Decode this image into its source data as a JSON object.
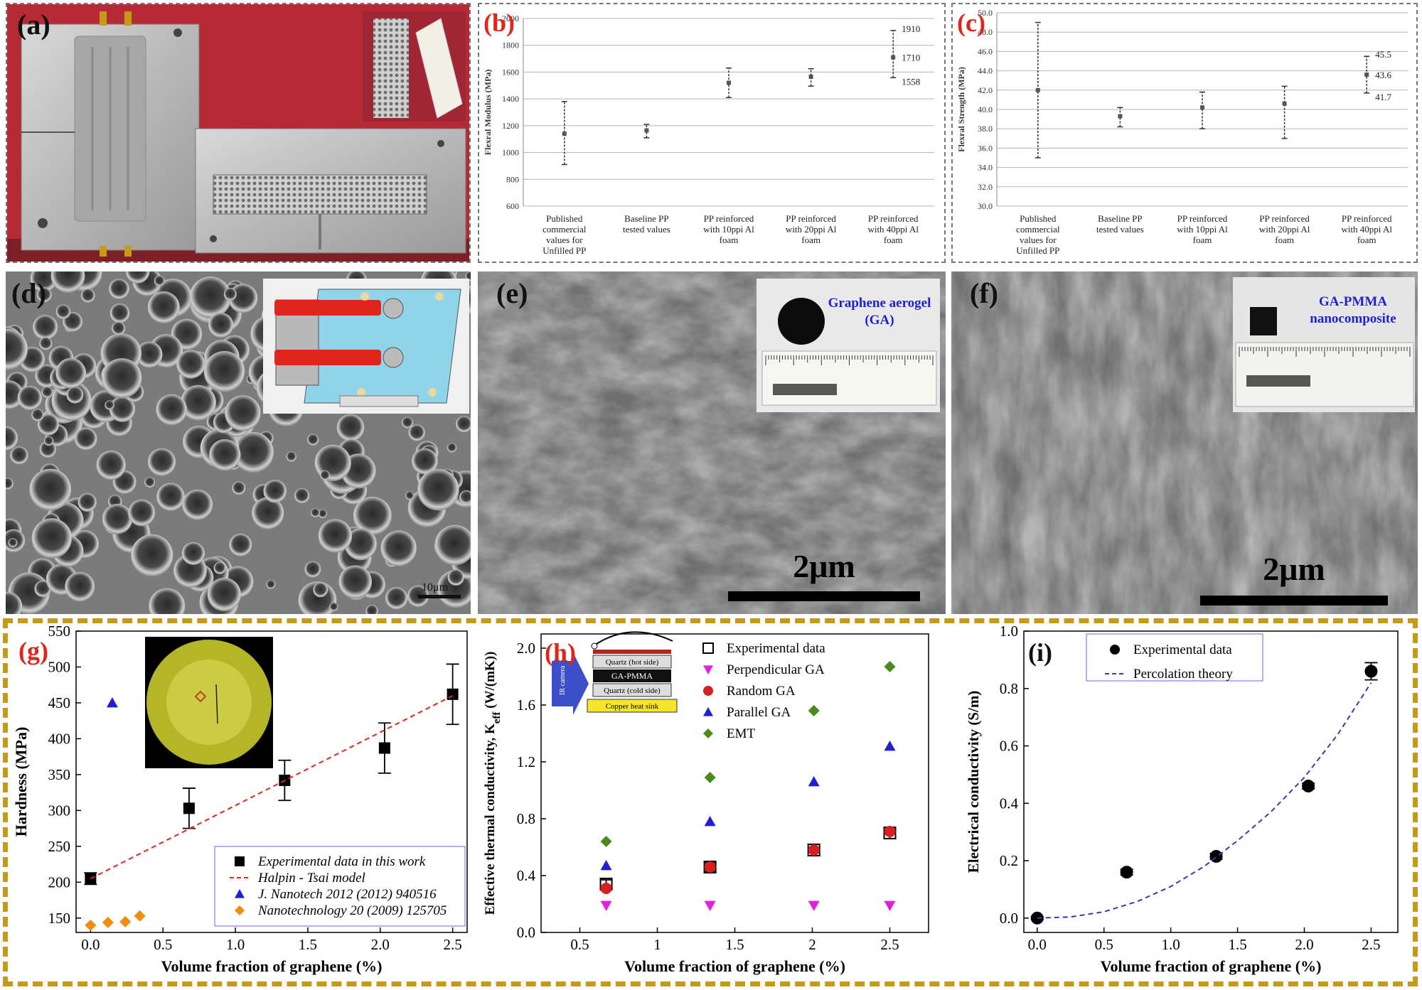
{
  "panels": {
    "a": {
      "letter": "(a)"
    },
    "b": {
      "letter": "(b)"
    },
    "c": {
      "letter": "(c)"
    },
    "d": {
      "letter": "(d)",
      "scale": "10μm"
    },
    "e": {
      "letter": "(e)",
      "scale": "2μm",
      "inset_label": "Graphene aerogel (GA)",
      "inset_label_1": "Graphene aerogel",
      "inset_label_2": "(GA)"
    },
    "f": {
      "letter": "(f)",
      "scale": "2μm",
      "inset_label_1": "GA-PMMA",
      "inset_label_2": "nanocomposite"
    },
    "g": {
      "letter": "(g)"
    },
    "h": {
      "letter": "(h)",
      "inset": {
        "label_top": "Quartz (hot side)",
        "label_mid": "GA-PMMA",
        "label_low": "Quartz (cold side)",
        "label_bottom": "Copper heat sink",
        "camera": "IR camera"
      }
    },
    "i": {
      "letter": "(i)"
    }
  },
  "chart_data": [
    {
      "id": "b",
      "type": "scatter",
      "ylabel": "Flexral Modulus (MPa)",
      "ylim": [
        600,
        2000
      ],
      "yticks": [
        600,
        800,
        1000,
        1200,
        1400,
        1600,
        1800,
        2000
      ],
      "categories": [
        "Published commercial values for Unfilled PP",
        "Baseline PP tested values",
        "PP reinforced with 10ppi Al foam",
        "PP reinforced with 20ppi Al foam",
        "PP reinforced with 40ppi Al foam"
      ],
      "category_lines": [
        [
          "Published",
          "commercial",
          "values for",
          "Unfilled PP"
        ],
        [
          "Baseline PP",
          "tested values"
        ],
        [
          "PP reinforced",
          "with 10ppi Al",
          "foam"
        ],
        [
          "PP reinforced",
          "with 20ppi Al",
          "foam"
        ],
        [
          "PP reinforced",
          "with 40ppi Al",
          "foam"
        ]
      ],
      "values": [
        1140,
        1165,
        1520,
        1565,
        1710
      ],
      "err_low": [
        910,
        1110,
        1410,
        1495,
        1558
      ],
      "err_high": [
        1380,
        1210,
        1630,
        1625,
        1910
      ],
      "annotations": [
        "1910",
        "1710",
        "1558"
      ],
      "grid": true
    },
    {
      "id": "c",
      "type": "scatter",
      "ylabel": "Flexral Strength (MPa)",
      "ylim": [
        30,
        50
      ],
      "yticks": [
        30.0,
        32.0,
        34.0,
        36.0,
        38.0,
        40.0,
        42.0,
        44.0,
        46.0,
        48.0,
        50.0
      ],
      "ytick_labels": [
        "30.0",
        "32.0",
        "34.0",
        "36.0",
        "38.0",
        "40.0",
        "42.0",
        "44.0",
        "46.0",
        "48.0",
        "50.0"
      ],
      "categories": [
        "Published commercial values for Unfilled PP",
        "Baseline PP tested values",
        "PP reinforced with 10ppi Al foam",
        "PP reinforced with 20ppi Al foam",
        "PP reinforced with 40ppi Al foam"
      ],
      "category_lines": [
        [
          "Published",
          "commercial",
          "values for",
          "Unfilled PP"
        ],
        [
          "Baseline PP",
          "tested values"
        ],
        [
          "PP reinforced",
          "with 10ppi Al",
          "foam"
        ],
        [
          "PP reinforced",
          "with 20ppi Al",
          "foam"
        ],
        [
          "PP reinforced",
          "with 40ppi Al",
          "foam"
        ]
      ],
      "values": [
        42.0,
        39.3,
        40.2,
        40.6,
        43.6
      ],
      "err_low": [
        35.0,
        38.2,
        38.0,
        37.0,
        41.7
      ],
      "err_high": [
        49.0,
        40.2,
        41.8,
        42.4,
        45.5
      ],
      "annotations": [
        "45.5",
        "43.6",
        "41.7"
      ],
      "grid": true
    },
    {
      "id": "g",
      "type": "scatter",
      "xlabel": "Volume fraction of graphene (%)",
      "ylabel": "Hardness (MPa)",
      "xlim": [
        -0.1,
        2.6
      ],
      "ylim": [
        130,
        550
      ],
      "xticks": [
        0.0,
        0.5,
        1.0,
        1.5,
        2.0,
        2.5
      ],
      "xtick_labels": [
        "0.0",
        "0.5",
        "1.0",
        "1.5",
        "2.0",
        "2.5"
      ],
      "yticks": [
        150,
        200,
        250,
        300,
        350,
        400,
        450,
        500,
        550
      ],
      "legend": "bottom-right",
      "series": [
        {
          "name": "Experimental data in this work",
          "marker": "square",
          "color": "#000000",
          "x": [
            0.0,
            0.68,
            1.34,
            2.03,
            2.5
          ],
          "y": [
            205,
            303,
            342,
            387,
            462
          ],
          "err": [
            8,
            28,
            28,
            35,
            42
          ]
        },
        {
          "name": "Halpin - Tsai model",
          "marker": "dashed-line",
          "color": "#e0261c",
          "x": [
            0.0,
            2.5
          ],
          "y": [
            205,
            460
          ]
        },
        {
          "name": "J. Nanotech 2012 (2012) 940516",
          "marker": "triangle",
          "color": "#1f1fd6",
          "x": [
            0.15
          ],
          "y": [
            450
          ]
        },
        {
          "name": "Nanotechnology 20 (2009) 125705",
          "marker": "diamond",
          "color": "#f28c0f",
          "x": [
            0.0,
            0.12,
            0.24,
            0.34
          ],
          "y": [
            140,
            144,
            145,
            153
          ]
        }
      ]
    },
    {
      "id": "h",
      "type": "scatter",
      "xlabel": "Volume fraction of graphene (%)",
      "ylabel": "Effective thermal conductivity, K",
      "ylabel_sub": "eff",
      "ylabel_unit": " (W/(mK))",
      "xlim": [
        0.25,
        2.75
      ],
      "ylim": [
        0.0,
        2.1
      ],
      "xticks": [
        0.5,
        1.0,
        1.5,
        2.0,
        2.5
      ],
      "yticks": [
        0.0,
        0.4,
        0.8,
        1.2,
        1.6,
        2.0
      ],
      "ytick_labels": [
        "0.0",
        "0.4",
        "0.8",
        "1.2",
        "1.6",
        "2.0"
      ],
      "legend": "top-right",
      "series": [
        {
          "name": "Experimental data",
          "marker": "open-square",
          "color": "#000000",
          "x": [
            0.67,
            1.34,
            2.01,
            2.5
          ],
          "y": [
            0.34,
            0.46,
            0.58,
            0.7
          ],
          "err": [
            0.03,
            0.03,
            0.04,
            0.04
          ]
        },
        {
          "name": "Perpendicular GA",
          "marker": "down-triangle",
          "color": "#e01fe0",
          "x": [
            0.67,
            1.34,
            2.01,
            2.5
          ],
          "y": [
            0.19,
            0.19,
            0.19,
            0.19
          ]
        },
        {
          "name": "Random GA",
          "marker": "circle",
          "color": "#d62020",
          "x": [
            0.67,
            1.34,
            2.01,
            2.5
          ],
          "y": [
            0.31,
            0.46,
            0.58,
            0.71
          ]
        },
        {
          "name": "Parallel GA",
          "marker": "triangle",
          "color": "#1f1fd6",
          "x": [
            0.67,
            1.34,
            2.01,
            2.5
          ],
          "y": [
            0.47,
            0.78,
            1.06,
            1.31
          ]
        },
        {
          "name": "EMT",
          "marker": "diamond",
          "color": "#4a8a1f",
          "x": [
            0.67,
            1.34,
            2.01,
            2.5
          ],
          "y": [
            0.64,
            1.09,
            1.56,
            1.87
          ]
        }
      ]
    },
    {
      "id": "i",
      "type": "scatter",
      "xlabel": "Volume fraction of graphene (%)",
      "ylabel": "Electrical conductivity (S/m)",
      "xlim": [
        -0.1,
        2.7
      ],
      "ylim": [
        -0.05,
        1.0
      ],
      "xticks": [
        0.0,
        0.5,
        1.0,
        1.5,
        2.0,
        2.5
      ],
      "xtick_labels": [
        "0.0",
        "0.5",
        "1.0",
        "1.5",
        "2.0",
        "2.5"
      ],
      "yticks": [
        0.0,
        0.2,
        0.4,
        0.6,
        0.8,
        1.0
      ],
      "ytick_labels": [
        "0.0",
        "0.2",
        "0.4",
        "0.6",
        "0.8",
        "1.0"
      ],
      "legend": "top-left",
      "series": [
        {
          "name": "Experimental data",
          "marker": "circle",
          "color": "#000000",
          "x": [
            0.0,
            0.67,
            1.34,
            2.03,
            2.5
          ],
          "y": [
            0.0,
            0.16,
            0.215,
            0.46,
            0.86
          ],
          "err": [
            0.005,
            0.01,
            0.01,
            0.01,
            0.03
          ]
        },
        {
          "name": "Percolation theory",
          "marker": "dashed-line",
          "color": "#3a3ab0",
          "x": [
            0.0,
            0.25,
            0.5,
            0.75,
            1.0,
            1.25,
            1.5,
            1.75,
            2.0,
            2.25,
            2.5
          ],
          "y": [
            0.0,
            0.004,
            0.022,
            0.058,
            0.11,
            0.18,
            0.27,
            0.37,
            0.49,
            0.64,
            0.82
          ]
        }
      ]
    }
  ],
  "colors": {
    "frame": "#c49a17",
    "letter_red": "#e0261c",
    "letter_dark": "#111111",
    "inset_blue": "#1f1fd6"
  }
}
